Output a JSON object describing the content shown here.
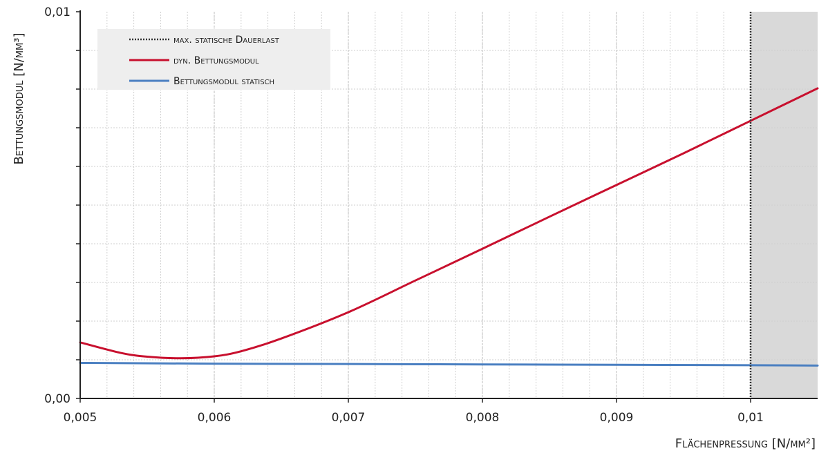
{
  "chart_data": {
    "type": "line",
    "xlabel": "Flächenpressung [N/mm²]",
    "ylabel": "Bettungsmodul [N/mm³]",
    "xlim": [
      0.005,
      0.0105
    ],
    "ylim": [
      0.0,
      0.01
    ],
    "x_ticks": [
      "0,005",
      "0,006",
      "0,007",
      "0,008",
      "0,009",
      "0,01"
    ],
    "y_ticks": [
      "0,00",
      "0,01"
    ],
    "grid": true,
    "legend_position": "top-left",
    "shaded_region": {
      "from": 0.01,
      "to": 0.0105,
      "color": "#d9d9d9"
    },
    "vertical_marker": {
      "name": "max. statische Dauerlast",
      "x": 0.01,
      "color": "#333333",
      "style": "dotted"
    },
    "series": [
      {
        "name": "dyn. Bettungsmodul",
        "color": "#c8102e",
        "x": [
          0.005,
          0.0053,
          0.0055,
          0.00575,
          0.006,
          0.0062,
          0.0065,
          0.007,
          0.0075,
          0.008,
          0.0085,
          0.009,
          0.0095,
          0.01,
          0.0105
        ],
        "y": [
          0.00145,
          0.00118,
          0.00108,
          0.00104,
          0.00109,
          0.00122,
          0.00155,
          0.00223,
          0.00305,
          0.00387,
          0.0047,
          0.00552,
          0.00634,
          0.00718,
          0.00802
        ]
      },
      {
        "name": "Bettungsmodul statisch",
        "color": "#4a7fc1",
        "x": [
          0.005,
          0.006,
          0.007,
          0.008,
          0.009,
          0.01,
          0.0105
        ],
        "y": [
          0.00092,
          0.0009,
          0.00089,
          0.00088,
          0.00087,
          0.00086,
          0.00085
        ]
      }
    ]
  }
}
